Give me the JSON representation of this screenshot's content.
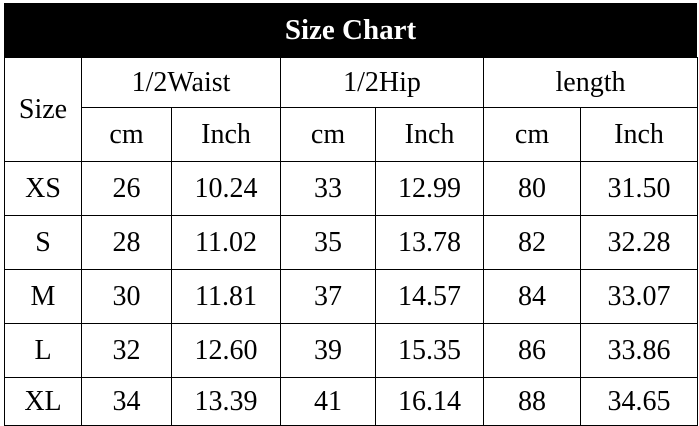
{
  "title": "Size Chart",
  "size_header": "Size",
  "groups": [
    "1/2Waist",
    "1/2Hip",
    "length"
  ],
  "units": [
    "cm",
    "Inch",
    "cm",
    "Inch",
    "cm",
    "Inch"
  ],
  "rows": [
    [
      "XS",
      "26",
      "10.24",
      "33",
      "12.99",
      "80",
      "31.50"
    ],
    [
      "S",
      "28",
      "11.02",
      "35",
      "13.78",
      "82",
      "32.28"
    ],
    [
      "M",
      "30",
      "11.81",
      "37",
      "14.57",
      "84",
      "33.07"
    ],
    [
      "L",
      "32",
      "12.60",
      "39",
      "15.35",
      "86",
      "33.86"
    ],
    [
      "XL",
      "34",
      "13.39",
      "41",
      "16.14",
      "88",
      "34.65"
    ]
  ]
}
